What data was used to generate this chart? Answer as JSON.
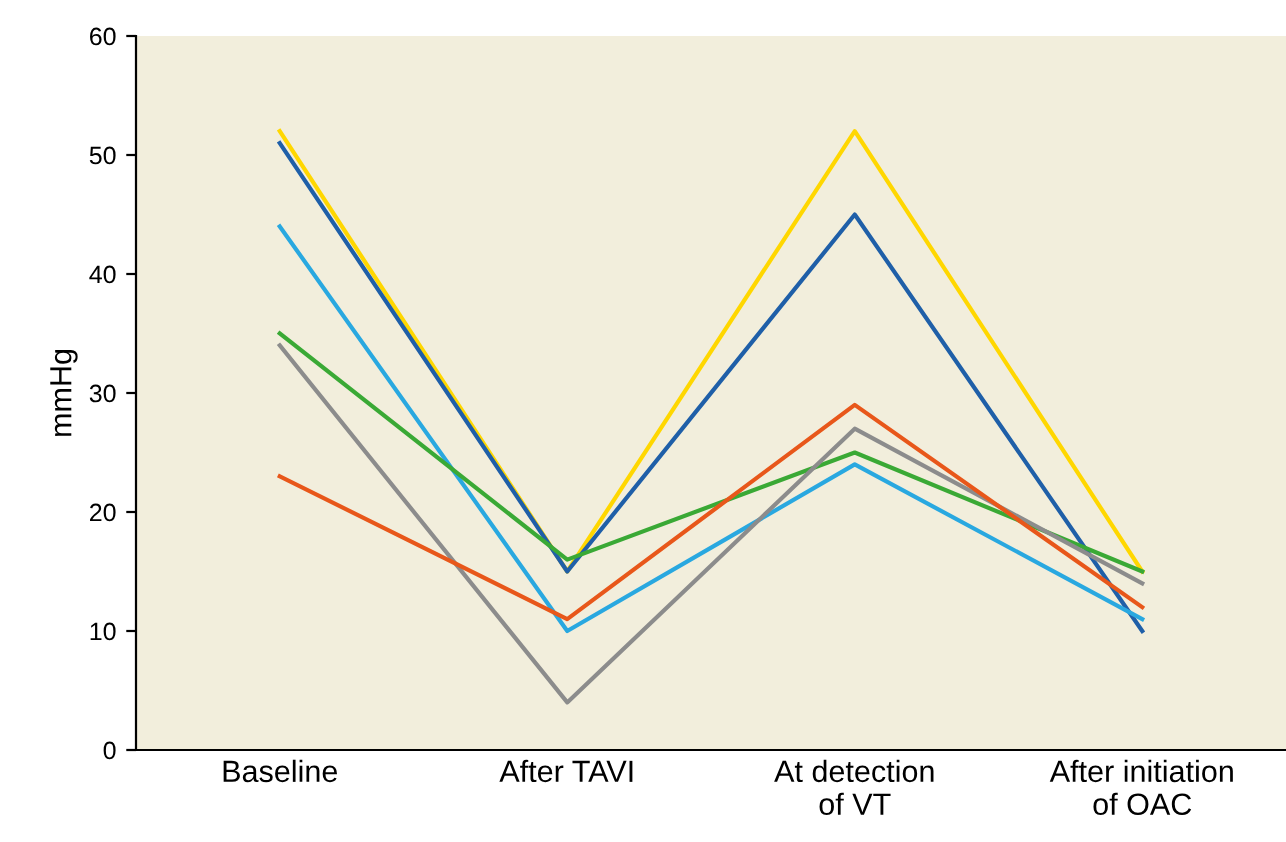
{
  "chart_data": {
    "type": "line",
    "ylabel": "mmHg",
    "categories": [
      "Baseline",
      "After TAVI",
      "At detection\nof VT",
      "After initiation\nof OAC"
    ],
    "series": [
      {
        "color": "#ffd700",
        "values": [
          52,
          15,
          52,
          15
        ]
      },
      {
        "color": "#1f5fa8",
        "values": [
          51,
          15,
          45,
          10
        ]
      },
      {
        "color": "#29a8e0",
        "values": [
          44,
          10,
          24,
          11
        ]
      },
      {
        "color": "#3aa935",
        "values": [
          35,
          16,
          25,
          15
        ]
      },
      {
        "color": "#8c8c8c",
        "values": [
          34,
          4,
          27,
          14
        ]
      },
      {
        "color": "#e8571a",
        "values": [
          23,
          11,
          29,
          12
        ]
      }
    ],
    "ylim": [
      0,
      60
    ],
    "yticks": [
      0,
      10,
      20,
      30,
      40,
      50,
      60
    ],
    "grid": false,
    "marker": "none",
    "line_style": "solid"
  }
}
